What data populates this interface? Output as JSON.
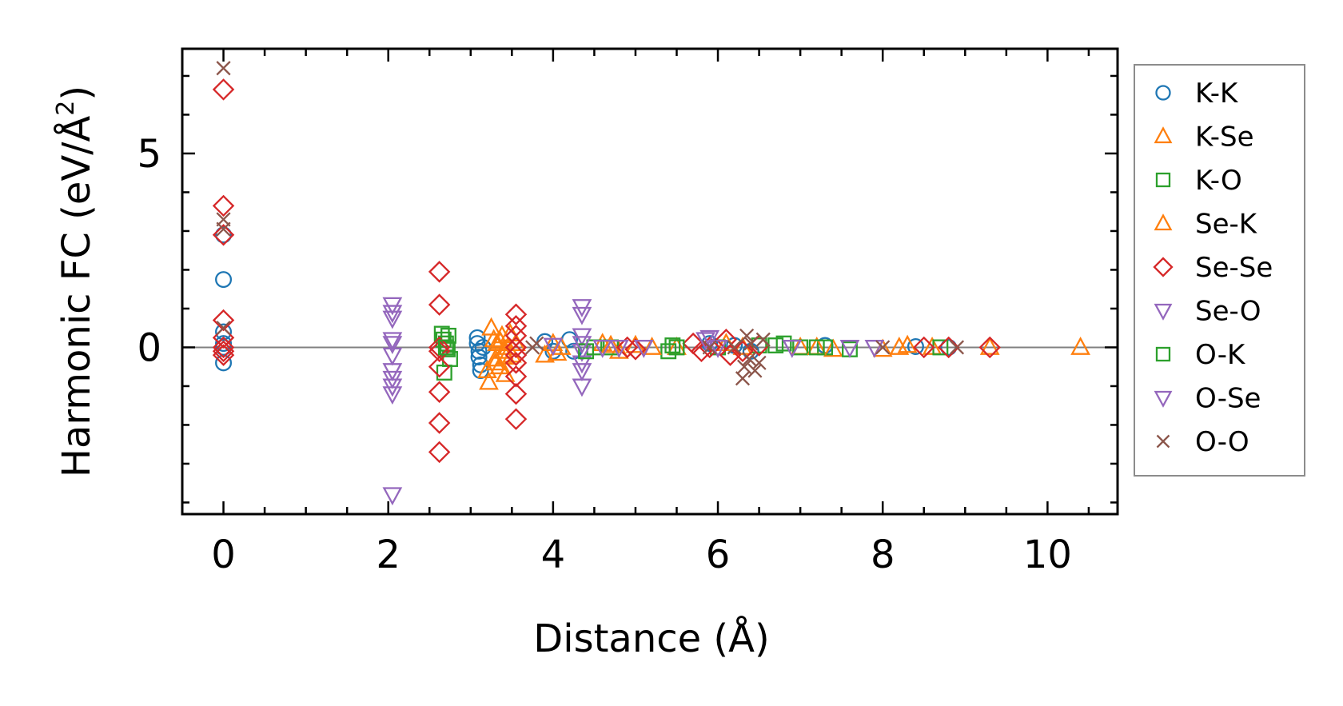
{
  "chart_data": {
    "type": "scatter",
    "title": "",
    "xlabel": "Distance (Å)",
    "ylabel_prefix": "Harmonic FC (eV/Å",
    "ylabel_sup": "2",
    "ylabel_suffix": ")",
    "xlim": [
      -0.5,
      10.85
    ],
    "ylim": [
      -4.3,
      7.7
    ],
    "x_ticks": [
      0,
      2,
      4,
      6,
      8,
      10
    ],
    "y_ticks": [
      0,
      5
    ],
    "x_tick_labels": [
      "0",
      "2",
      "4",
      "6",
      "8",
      "10"
    ],
    "y_tick_labels": [
      "0",
      "5"
    ],
    "legend_position": "outside-right",
    "reference_line_y": 0,
    "series": [
      {
        "name": "K-K",
        "marker": "circle",
        "color": "#1f77b4",
        "x": [
          0,
          0,
          0,
          0,
          0,
          0,
          3.08,
          3.08,
          3.1,
          3.1,
          3.12,
          3.12,
          3.15,
          3.9,
          4.0,
          4.2,
          4.25,
          5.9,
          6.2,
          6.4,
          7.3,
          8.4,
          8.8
        ],
        "y": [
          2.9,
          1.75,
          0.4,
          0.1,
          0.0,
          -0.4,
          0.25,
          0.1,
          -0.1,
          -0.25,
          -0.45,
          -0.6,
          0.0,
          0.15,
          -0.1,
          0.2,
          -0.1,
          0.1,
          0.05,
          -0.1,
          0.05,
          0.02,
          0.0
        ]
      },
      {
        "name": "K-Se",
        "marker": "triangle-up",
        "color": "#ff7f0e",
        "x": [
          3.2,
          3.22,
          3.25,
          3.28,
          3.3,
          3.32,
          3.35,
          3.38,
          3.4,
          3.42,
          3.45,
          3.5,
          3.55,
          3.9,
          4.0,
          4.1,
          4.6,
          4.8,
          5.0,
          5.5,
          6.1,
          7.0,
          7.4,
          8.0,
          8.3,
          8.6,
          9.3,
          10.4
        ],
        "y": [
          -0.6,
          -0.9,
          0.5,
          0.2,
          -0.3,
          0.1,
          -0.5,
          0.3,
          -0.1,
          -0.7,
          0.0,
          -0.2,
          0.1,
          -0.2,
          0.1,
          0.0,
          0.1,
          -0.1,
          0.05,
          0.0,
          0.1,
          0.0,
          -0.05,
          -0.05,
          0.05,
          0.0,
          0.0,
          0.0
        ]
      },
      {
        "name": "K-O",
        "marker": "square",
        "color": "#2ca02c",
        "x": [
          2.65,
          2.67,
          2.7,
          2.72,
          2.75,
          2.68,
          2.73,
          4.5,
          4.7,
          5.4,
          5.45,
          6.0,
          6.5,
          6.8,
          7.0,
          7.3,
          7.6,
          8.7
        ],
        "y": [
          0.35,
          0.2,
          0.1,
          -0.05,
          -0.3,
          -0.65,
          0.3,
          0.0,
          0.0,
          -0.1,
          0.05,
          0.0,
          0.05,
          0.1,
          0.0,
          0.0,
          -0.05,
          0.0
        ]
      },
      {
        "name": "Se-K",
        "marker": "triangle-up",
        "color": "#ff7f0e",
        "x": [
          3.3,
          3.36,
          3.43,
          3.48,
          4.05,
          4.7,
          5.2,
          6.3,
          7.2,
          8.2
        ],
        "y": [
          -0.4,
          0.15,
          -0.25,
          0.35,
          -0.15,
          0.05,
          0.0,
          0.0,
          0.0,
          0.0
        ]
      },
      {
        "name": "Se-Se",
        "marker": "diamond",
        "color": "#d62728",
        "x": [
          0,
          0,
          0,
          0,
          0,
          0,
          0,
          0,
          2.62,
          2.62,
          2.62,
          2.62,
          2.62,
          2.62,
          2.62,
          2.62,
          3.55,
          3.55,
          3.55,
          3.55,
          3.55,
          3.55,
          3.55,
          3.55,
          3.55,
          4.9,
          5.0,
          5.7,
          5.8,
          5.9,
          6.1,
          6.15,
          6.3,
          6.5,
          8.5,
          8.8,
          9.3
        ],
        "y": [
          6.65,
          3.65,
          2.9,
          0.7,
          0.25,
          0.0,
          -0.1,
          -0.2,
          1.95,
          1.1,
          0.0,
          -0.5,
          -1.15,
          -1.95,
          -2.7,
          -0.1,
          0.85,
          0.55,
          0.3,
          0.0,
          -0.4,
          -0.75,
          -1.2,
          -1.85,
          -0.2,
          0.0,
          -0.05,
          0.1,
          -0.1,
          0.0,
          0.2,
          -0.2,
          -0.1,
          0.05,
          0.0,
          0.0,
          0.0
        ]
      },
      {
        "name": "Se-O",
        "marker": "triangle-down",
        "color": "#9467bd",
        "x": [
          2.05,
          2.05,
          2.05,
          2.05,
          2.05,
          2.05,
          2.05,
          2.05,
          2.05,
          2.05,
          4.0,
          4.35,
          4.35,
          4.35,
          4.35,
          4.35,
          4.35,
          4.35,
          4.8,
          5.9,
          6.0,
          7.6,
          7.9
        ],
        "y": [
          1.1,
          0.9,
          0.75,
          0.2,
          -0.2,
          -0.6,
          -0.8,
          -1.0,
          -1.2,
          -3.8,
          0.05,
          1.05,
          0.85,
          0.3,
          -0.1,
          -0.6,
          -1.0,
          -0.4,
          0.0,
          0.25,
          0.0,
          0.0,
          0.0
        ]
      },
      {
        "name": "O-K",
        "marker": "square",
        "color": "#2ca02c",
        "x": [
          2.7,
          4.4,
          5.5,
          6.7,
          7.2
        ],
        "y": [
          0.0,
          -0.1,
          0.0,
          0.05,
          0.0
        ]
      },
      {
        "name": "O-Se",
        "marker": "triangle-down",
        "color": "#9467bd",
        "x": [
          2.05,
          4.35,
          4.6,
          5.1,
          5.85,
          6.9
        ],
        "y": [
          0.1,
          0.1,
          0.0,
          0.0,
          0.2,
          0.0
        ]
      },
      {
        "name": "O-O",
        "marker": "x",
        "color": "#8c564b",
        "x": [
          0,
          0,
          0,
          0,
          3.75,
          3.8,
          5.9,
          6.3,
          6.32,
          6.35,
          6.38,
          6.4,
          6.45,
          6.5,
          6.55,
          6.2,
          8.0,
          8.9
        ],
        "y": [
          7.2,
          3.3,
          3.05,
          0.5,
          0.0,
          0.1,
          0.0,
          -0.8,
          -0.5,
          0.3,
          -0.3,
          0.1,
          -0.6,
          -0.4,
          0.2,
          0.0,
          0.0,
          0.0
        ]
      }
    ]
  }
}
